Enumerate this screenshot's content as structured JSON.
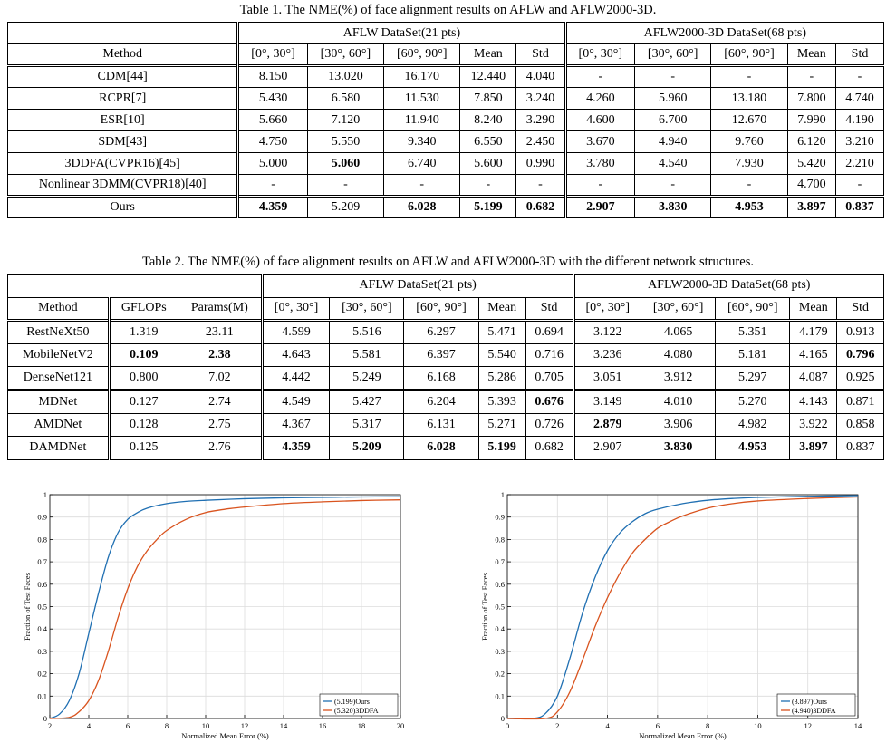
{
  "table1": {
    "caption": "Table 1. The NME(%) of face alignment results on AFLW and AFLW2000-3D.",
    "group1": "AFLW DataSet(21 pts)",
    "group2": "AFLW2000-3D DataSet(68 pts)",
    "headers": [
      "Method",
      "[0°, 30°]",
      "[30°, 60°]",
      "[60°, 90°]",
      "Mean",
      "Std",
      "[0°, 30°]",
      "[30°, 60°]",
      "[60°, 90°]",
      "Mean",
      "Std"
    ],
    "rows": [
      {
        "cells": [
          "CDM[44]",
          "8.150",
          "13.020",
          "16.170",
          "12.440",
          "4.040",
          "-",
          "-",
          "-",
          "-",
          "-"
        ],
        "bold": []
      },
      {
        "cells": [
          "RCPR[7]",
          "5.430",
          "6.580",
          "11.530",
          "7.850",
          "3.240",
          "4.260",
          "5.960",
          "13.180",
          "7.800",
          "4.740"
        ],
        "bold": []
      },
      {
        "cells": [
          "ESR[10]",
          "5.660",
          "7.120",
          "11.940",
          "8.240",
          "3.290",
          "4.600",
          "6.700",
          "12.670",
          "7.990",
          "4.190"
        ],
        "bold": []
      },
      {
        "cells": [
          "SDM[43]",
          "4.750",
          "5.550",
          "9.340",
          "6.550",
          "2.450",
          "3.670",
          "4.940",
          "9.760",
          "6.120",
          "3.210"
        ],
        "bold": []
      },
      {
        "cells": [
          "3DDFA(CVPR16)[45]",
          "5.000",
          "5.060",
          "6.740",
          "5.600",
          "0.990",
          "3.780",
          "4.540",
          "7.930",
          "5.420",
          "2.210"
        ],
        "bold": [
          2
        ]
      },
      {
        "cells": [
          "Nonlinear 3DMM(CVPR18)[40]",
          "-",
          "-",
          "-",
          "-",
          "-",
          "-",
          "-",
          "-",
          "4.700",
          "-"
        ],
        "bold": []
      },
      {
        "cells": [
          "Ours",
          "4.359",
          "5.209",
          "6.028",
          "5.199",
          "0.682",
          "2.907",
          "3.830",
          "4.953",
          "3.897",
          "0.837"
        ],
        "bold": [
          1,
          3,
          4,
          5,
          6,
          7,
          8,
          9,
          10
        ]
      }
    ]
  },
  "table2": {
    "caption": "Table 2. The NME(%) of face alignment results on AFLW and AFLW2000-3D with the different network structures.",
    "group1": "AFLW DataSet(21 pts)",
    "group2": "AFLW2000-3D DataSet(68 pts)",
    "headers": [
      "Method",
      "GFLOPs",
      "Params(M)",
      "[0°, 30°]",
      "[30°, 60°]",
      "[60°, 90°]",
      "Mean",
      "Std",
      "[0°, 30°]",
      "[30°, 60°]",
      "[60°, 90°]",
      "Mean",
      "Std"
    ],
    "rows": [
      {
        "cells": [
          "RestNeXt50",
          "1.319",
          "23.11",
          "4.599",
          "5.516",
          "6.297",
          "5.471",
          "0.694",
          "3.122",
          "4.065",
          "5.351",
          "4.179",
          "0.913"
        ],
        "bold": []
      },
      {
        "cells": [
          "MobileNetV2",
          "0.109",
          "2.38",
          "4.643",
          "5.581",
          "6.397",
          "5.540",
          "0.716",
          "3.236",
          "4.080",
          "5.181",
          "4.165",
          "0.796"
        ],
        "bold": [
          1,
          2,
          12
        ]
      },
      {
        "cells": [
          "DenseNet121",
          "0.800",
          "7.02",
          "4.442",
          "5.249",
          "6.168",
          "5.286",
          "0.705",
          "3.051",
          "3.912",
          "5.297",
          "4.087",
          "0.925"
        ],
        "bold": []
      },
      {
        "cells": [
          "MDNet",
          "0.127",
          "2.74",
          "4.549",
          "5.427",
          "6.204",
          "5.393",
          "0.676",
          "3.149",
          "4.010",
          "5.270",
          "4.143",
          "0.871"
        ],
        "bold": [
          7
        ]
      },
      {
        "cells": [
          "AMDNet",
          "0.128",
          "2.75",
          "4.367",
          "5.317",
          "6.131",
          "5.271",
          "0.726",
          "2.879",
          "3.906",
          "4.982",
          "3.922",
          "0.858"
        ],
        "bold": [
          8
        ]
      },
      {
        "cells": [
          "DAMDNet",
          "0.125",
          "2.76",
          "4.359",
          "5.209",
          "6.028",
          "5.199",
          "0.682",
          "2.907",
          "3.830",
          "4.953",
          "3.897",
          "0.837"
        ],
        "bold": [
          3,
          4,
          5,
          6,
          9,
          10,
          11
        ]
      }
    ]
  },
  "chart_data": [
    {
      "type": "line",
      "xlabel": "Normalized Mean Error (%)",
      "ylabel": "Fraction of Test Faces",
      "xlim": [
        2,
        20
      ],
      "ylim": [
        0,
        1
      ],
      "xticks": [
        2,
        4,
        6,
        8,
        10,
        12,
        14,
        16,
        18,
        20
      ],
      "yticks": [
        0,
        0.1,
        0.2,
        0.3,
        0.4,
        0.5,
        0.6,
        0.7,
        0.8,
        0.9,
        1
      ],
      "grid": true,
      "legend_position": "bottom-right",
      "series": [
        {
          "name": "(5.199)Ours",
          "color": "#1f6fb2",
          "x": [
            2.0,
            2.5,
            3.0,
            3.5,
            4.0,
            4.5,
            5.0,
            5.5,
            6.0,
            6.5,
            7.0,
            8.0,
            9.0,
            10.0,
            12.0,
            14.0,
            16.0,
            18.0,
            20.0
          ],
          "y": [
            0.0,
            0.02,
            0.08,
            0.2,
            0.38,
            0.56,
            0.72,
            0.83,
            0.89,
            0.92,
            0.94,
            0.96,
            0.97,
            0.975,
            0.982,
            0.986,
            0.988,
            0.99,
            0.991
          ]
        },
        {
          "name": "(5.320)3DDFA",
          "color": "#d9531e",
          "x": [
            2.0,
            3.0,
            3.5,
            4.0,
            4.5,
            5.0,
            5.5,
            6.0,
            6.5,
            7.0,
            7.5,
            8.0,
            9.0,
            10.0,
            11.0,
            12.0,
            14.0,
            16.0,
            18.0,
            20.0
          ],
          "y": [
            0.0,
            0.005,
            0.03,
            0.08,
            0.17,
            0.3,
            0.45,
            0.58,
            0.68,
            0.75,
            0.8,
            0.84,
            0.89,
            0.92,
            0.935,
            0.945,
            0.96,
            0.968,
            0.974,
            0.977
          ]
        }
      ]
    },
    {
      "type": "line",
      "xlabel": "Normalized Mean Error (%)",
      "ylabel": "Fraction of Test Faces",
      "xlim": [
        0,
        14
      ],
      "ylim": [
        0,
        1
      ],
      "xticks": [
        0,
        2,
        4,
        6,
        8,
        10,
        12,
        14
      ],
      "yticks": [
        0,
        0.1,
        0.2,
        0.3,
        0.4,
        0.5,
        0.6,
        0.7,
        0.8,
        0.9,
        1
      ],
      "grid": true,
      "legend_position": "bottom-right",
      "series": [
        {
          "name": "(3.897)Ours",
          "color": "#1f6fb2",
          "x": [
            0.0,
            1.0,
            1.5,
            2.0,
            2.5,
            3.0,
            3.5,
            4.0,
            4.5,
            5.0,
            5.5,
            6.0,
            7.0,
            8.0,
            9.0,
            10.0,
            12.0,
            14.0
          ],
          "y": [
            0.0,
            0.0,
            0.02,
            0.1,
            0.27,
            0.47,
            0.63,
            0.75,
            0.83,
            0.88,
            0.915,
            0.935,
            0.96,
            0.975,
            0.983,
            0.988,
            0.993,
            0.996
          ]
        },
        {
          "name": "(4.940)3DDFA",
          "color": "#d9531e",
          "x": [
            0.0,
            1.5,
            2.0,
            2.5,
            3.0,
            3.5,
            4.0,
            4.5,
            5.0,
            5.5,
            6.0,
            6.5,
            7.0,
            8.0,
            9.0,
            10.0,
            12.0,
            14.0
          ],
          "y": [
            0.0,
            0.0,
            0.03,
            0.12,
            0.26,
            0.41,
            0.54,
            0.65,
            0.74,
            0.8,
            0.85,
            0.88,
            0.905,
            0.94,
            0.96,
            0.972,
            0.983,
            0.99
          ]
        }
      ]
    }
  ]
}
